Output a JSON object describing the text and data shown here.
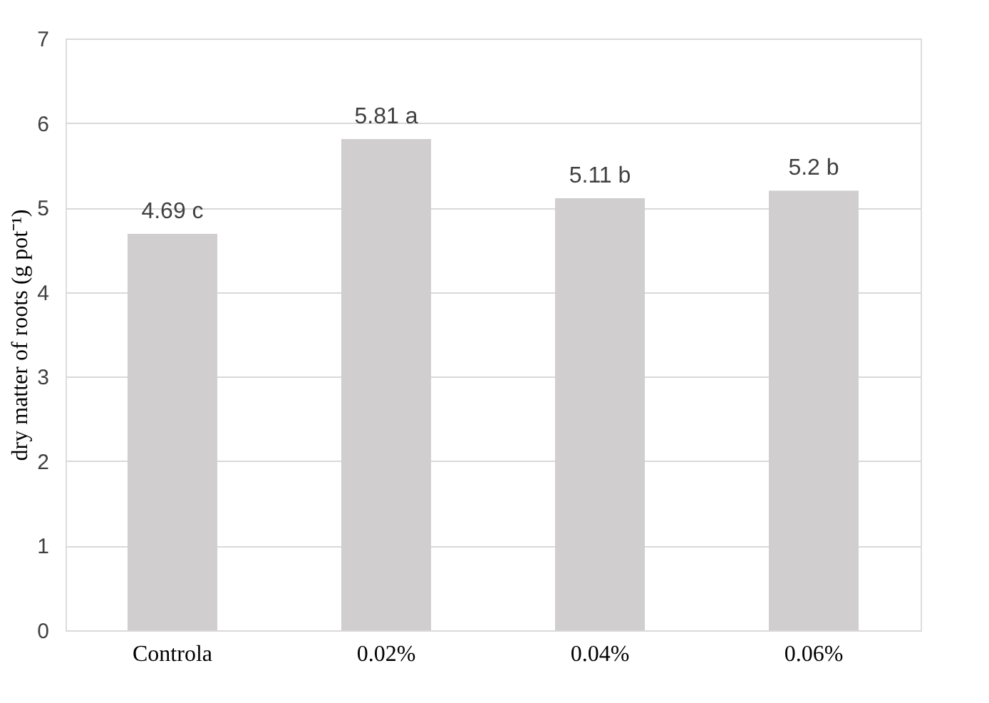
{
  "chart_data": {
    "type": "bar",
    "categories": [
      "Controla",
      "0.02%",
      "0.04%",
      "0.06%"
    ],
    "values": [
      4.69,
      5.81,
      5.11,
      5.2
    ],
    "value_labels": [
      "4.69 c",
      "5.81 a",
      "5.11 b",
      "5.2 b"
    ],
    "color": "#d0cece",
    "ylabel": "dry matter of roots (g pot⁻¹)",
    "ylim": [
      0,
      7
    ],
    "yticks": [
      0,
      1,
      2,
      3,
      4,
      5,
      6,
      7
    ],
    "grid": "y"
  }
}
